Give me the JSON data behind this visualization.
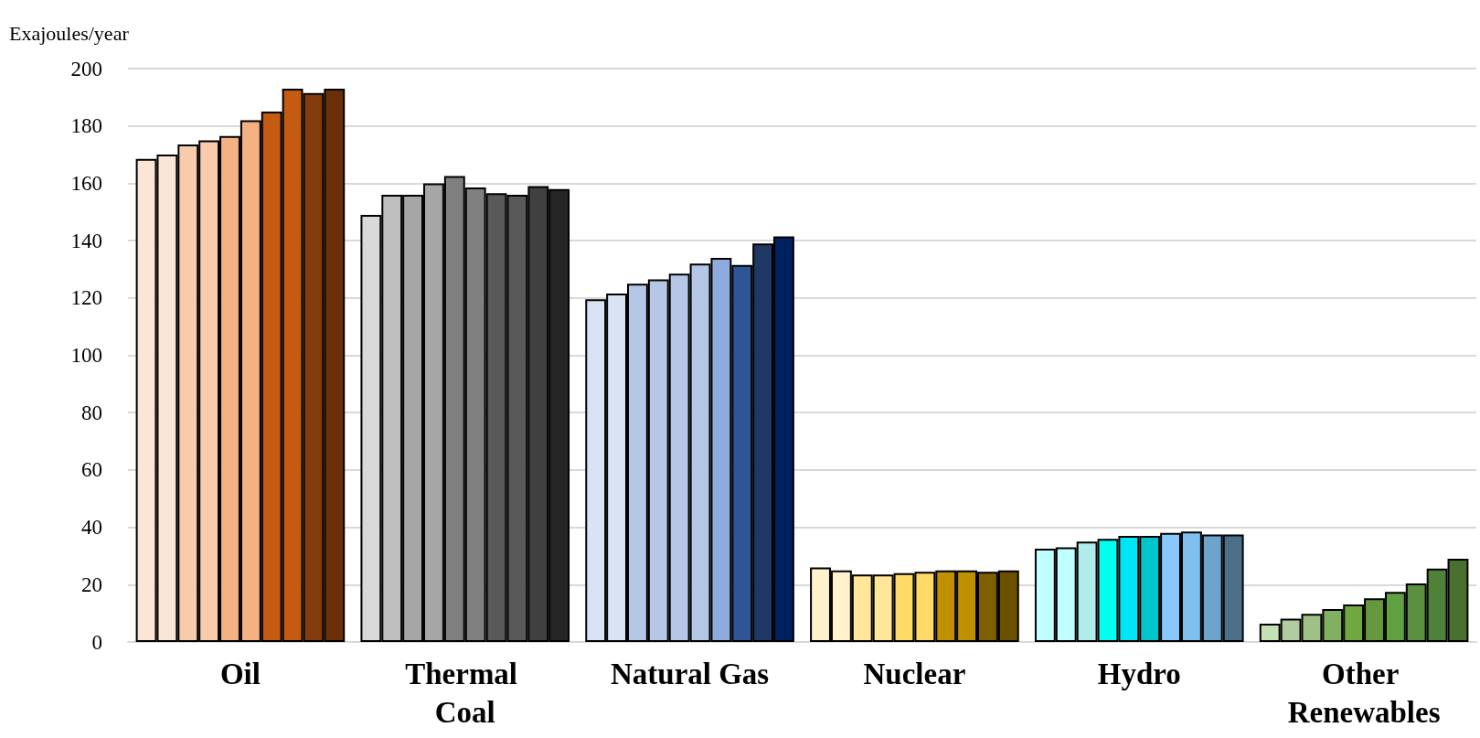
{
  "chart_data": {
    "type": "bar",
    "ylabel": "Exajoules/year",
    "categories": [
      "Oil",
      "Thermal Coal",
      "Natural Gas",
      "Nuclear",
      "Hydro",
      "Other Renewables"
    ],
    "series": [
      {
        "colors": [
          "#fbe5d6",
          "#d9d9d9",
          "#dae3f3",
          "#fff2cc",
          "#c0ffff",
          "#c5e0b4"
        ],
        "values": [
          168.5,
          149,
          119.5,
          26,
          32.5,
          6.4
        ]
      },
      {
        "colors": [
          "#fbe5d6",
          "#bfbfbf",
          "#dae3f3",
          "#fff2cc",
          "#c0ffff",
          "#b0cca0"
        ],
        "values": [
          170,
          156,
          121.5,
          25,
          33,
          8.1
        ]
      },
      {
        "colors": [
          "#f8cbad",
          "#a6a6a6",
          "#b4c7e7",
          "#ffe699",
          "#b0ecec",
          "#a0c088"
        ],
        "values": [
          173.5,
          156,
          125,
          23.5,
          35,
          9.8
        ]
      },
      {
        "colors": [
          "#f8cbad",
          "#a6a6a6",
          "#b4c7e7",
          "#ffe699",
          "#00ffee",
          "#80b060"
        ],
        "values": [
          175,
          160,
          126.5,
          23.5,
          36,
          11.5
        ]
      },
      {
        "colors": [
          "#f4b183",
          "#808080",
          "#b4c7e7",
          "#ffd966",
          "#00e5f5",
          "#70a840"
        ],
        "values": [
          176.5,
          162.5,
          128.5,
          24,
          37,
          13.1
        ]
      },
      {
        "colors": [
          "#f4b183",
          "#808080",
          "#b4c7e7",
          "#ffd966",
          "#00c5cc",
          "#66993d"
        ],
        "values": [
          182,
          158.5,
          132,
          24.5,
          37,
          15.2
        ]
      },
      {
        "colors": [
          "#c55a11",
          "#595959",
          "#8faadc",
          "#bf9000",
          "#88c8ff",
          "#60a040"
        ],
        "values": [
          185,
          156.5,
          134,
          25,
          38,
          17.5
        ]
      },
      {
        "colors": [
          "#c55a11",
          "#595959",
          "#2f5597",
          "#bf9000",
          "#80c0ee",
          "#5a9040"
        ],
        "values": [
          193,
          156,
          131.5,
          25,
          38.5,
          20.4
        ]
      },
      {
        "colors": [
          "#843c0c",
          "#404040",
          "#203864",
          "#7f6000",
          "#6ea4cc",
          "#4f8238"
        ],
        "values": [
          191.5,
          159,
          139,
          24.5,
          37.5,
          25.6
        ]
      },
      {
        "colors": [
          "#6b300a",
          "#262626",
          "#002060",
          "#6b5000",
          "#4d7088",
          "#4a7030"
        ],
        "values": [
          193,
          158,
          141.5,
          25,
          37.5,
          29
        ]
      }
    ],
    "ylim": [
      0,
      200
    ],
    "yticks": [
      0,
      20,
      40,
      60,
      80,
      100,
      120,
      140,
      160,
      180,
      200
    ],
    "grid": "y"
  }
}
